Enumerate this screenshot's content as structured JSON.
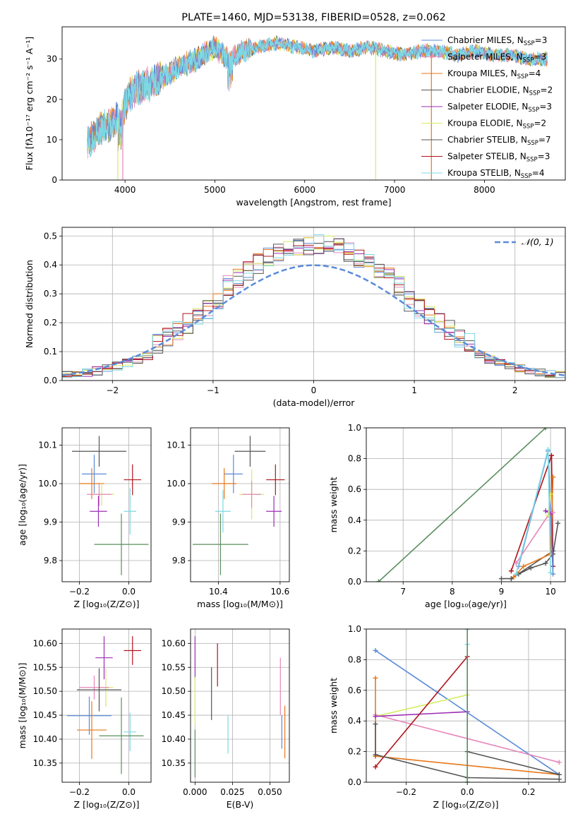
{
  "colors": {
    "Chabrier MILES": "#5b8bd9",
    "Salpeter MILES": "#e587b9",
    "Kroupa MILES": "#e8771a",
    "Chabrier ELODIE": "#555555",
    "Salpeter ELODIE": "#9b2fb5",
    "Kroupa ELODIE": "#d6ec62",
    "Chabrier STELIB": "#555555",
    "Salpeter STELIB": "#b0141c",
    "Kroupa STELIB": "#7dd8e4",
    "extra": "#5a8f5e",
    "normal": "#5b8bd9"
  },
  "chart_data": [
    {
      "id": "spectrum",
      "type": "line",
      "title": "PLATE=1460, MJD=53138, FIBERID=0528, z=0.062",
      "xlabel": "wavelength [Angstrom, rest frame]",
      "ylabel": "Flux [fλ10⁻¹⁷ erg cm⁻² s⁻¹ A⁻¹]",
      "xlim": [
        3300,
        8900
      ],
      "ylim": [
        0,
        38
      ],
      "xticks": [
        4000,
        5000,
        6000,
        7000,
        8000
      ],
      "yticks": [
        0,
        10,
        20,
        30
      ],
      "legend_position": "top-right",
      "legend": [
        "Chabrier MILES, N_SSP=3",
        "Salpeter MILES, N_SSP=3",
        "Kroupa MILES, N_SSP=4",
        "Chabrier ELODIE, N_SSP=2",
        "Salpeter ELODIE, N_SSP=3",
        "Kroupa ELODIE, N_SSP=2",
        "Chabrier STELIB, N_SSP=7",
        "Salpeter STELIB, N_SSP=3",
        "Kroupa STELIB, N_SSP=4"
      ],
      "series": [
        {
          "name": "Kroupa STELIB",
          "x": [
            3580,
            3650,
            3750,
            3850,
            3950,
            4050,
            4150,
            4300,
            4450,
            4600,
            4800,
            5000,
            5150,
            5300,
            5500,
            5700,
            5900,
            6100,
            6300,
            6500,
            6700,
            6900,
            7100,
            7300,
            7500,
            7700,
            7900,
            8100,
            8300,
            8500,
            8700
          ],
          "y": [
            9,
            11,
            13,
            14,
            16,
            21,
            23,
            24,
            26,
            28,
            30,
            33,
            30,
            32,
            33,
            34,
            33,
            32,
            33,
            32,
            33,
            32,
            31,
            32,
            32,
            31,
            32,
            31,
            31,
            30,
            30
          ]
        }
      ]
    },
    {
      "id": "residuals",
      "type": "line",
      "xlabel": "(data-model)/error",
      "ylabel": "Normed distribution",
      "xlim": [
        -2.5,
        2.5
      ],
      "ylim": [
        0,
        0.53
      ],
      "xticks": [
        -2,
        -1,
        0,
        1,
        2
      ],
      "yticks": [
        0.0,
        0.1,
        0.2,
        0.3,
        0.4,
        0.5
      ],
      "grid": true,
      "legend_position": "top-right",
      "legend": [
        "𝒩(0, 1)"
      ],
      "series": [
        {
          "name": "𝒩(0, 1)",
          "mean": 0,
          "std": 1
        }
      ]
    },
    {
      "id": "age-vs-Z",
      "type": "scatter",
      "xlabel": "Z [log₁₀(Z/Z⊙)]",
      "ylabel": "age  [log₁₀(age/yr)]",
      "xlim": [
        -0.27,
        0.09
      ],
      "ylim": [
        9.745,
        10.145
      ],
      "xticks": [
        -0.2,
        0.0
      ],
      "yticks": [
        9.8,
        9.9,
        10.0,
        10.1
      ],
      "grid": true,
      "points": [
        {
          "model": "Chabrier STELIB",
          "x": -0.12,
          "y": 10.084,
          "xerr": 0.11,
          "yerr": 0.04
        },
        {
          "model": "Chabrier MILES",
          "x": -0.14,
          "y": 10.025,
          "xerr": 0.05,
          "yerr": 0.05
        },
        {
          "model": "Kroupa MILES",
          "x": -0.15,
          "y": 10.0,
          "xerr": 0.05,
          "yerr": 0.04
        },
        {
          "model": "Salpeter STELIB",
          "x": 0.015,
          "y": 10.01,
          "xerr": 0.035,
          "yerr": 0.04
        },
        {
          "model": "Kroupa ELODIE",
          "x": -0.11,
          "y": 9.972,
          "xerr": 0.05,
          "yerr": 0.03
        },
        {
          "model": "Salpeter MILES",
          "x": -0.12,
          "y": 9.972,
          "xerr": 0.05,
          "yerr": 0.03
        },
        {
          "model": "Salpeter ELODIE",
          "x": -0.123,
          "y": 9.928,
          "xerr": 0.035,
          "yerr": 0.04
        },
        {
          "model": "Kroupa STELIB",
          "x": 0.005,
          "y": 9.928,
          "xerr": 0.025,
          "yerr": 0.06
        },
        {
          "model": "extra",
          "x": -0.03,
          "y": 9.842,
          "xerr": 0.11,
          "yerr": 0.08
        }
      ]
    },
    {
      "id": "age-vs-mass",
      "type": "scatter",
      "xlabel": "mass [log₁₀(M/M⊙)]",
      "ylim": [
        9.745,
        10.145
      ],
      "xlim": [
        10.31,
        10.63
      ],
      "xticks": [
        10.4,
        10.6
      ],
      "yticks": [
        9.8,
        9.9,
        10.0,
        10.1
      ],
      "grid": true,
      "points": [
        {
          "model": "Chabrier STELIB",
          "x": 10.503,
          "y": 10.084,
          "xerr": 0.05,
          "yerr": 0.04
        },
        {
          "model": "Chabrier MILES",
          "x": 10.449,
          "y": 10.025,
          "xerr": 0.03,
          "yerr": 0.05
        },
        {
          "model": "Kroupa MILES",
          "x": 10.419,
          "y": 10.0,
          "xerr": 0.04,
          "yerr": 0.04
        },
        {
          "model": "Salpeter STELIB",
          "x": 10.585,
          "y": 10.01,
          "xerr": 0.03,
          "yerr": 0.04
        },
        {
          "model": "Kroupa ELODIE",
          "x": 10.508,
          "y": 9.972,
          "xerr": 0.04,
          "yerr": 0.065
        },
        {
          "model": "Salpeter MILES",
          "x": 10.508,
          "y": 9.972,
          "xerr": 0.03,
          "yerr": 0.035
        },
        {
          "model": "Salpeter ELODIE",
          "x": 10.58,
          "y": 9.928,
          "xerr": 0.025,
          "yerr": 0.04
        },
        {
          "model": "Kroupa STELIB",
          "x": 10.415,
          "y": 9.928,
          "xerr": 0.025,
          "yerr": 0.055
        },
        {
          "model": "extra",
          "x": 10.407,
          "y": 9.842,
          "xerr": 0.09,
          "yerr": 0.08
        }
      ]
    },
    {
      "id": "mass-weight-vs-age",
      "type": "line",
      "xlabel": "age  [log₁₀(age/yr)]",
      "ylabel": "mass weight",
      "xlim": [
        6.25,
        10.3
      ],
      "ylim": [
        0,
        1
      ],
      "xticks": [
        7,
        8,
        9,
        10
      ],
      "yticks": [
        0.0,
        0.2,
        0.4,
        0.6,
        0.8,
        1.0
      ],
      "grid": true,
      "series": [
        {
          "name": "extra",
          "x": [
            6.5,
            9.9
          ],
          "y": [
            0.0,
            1.0
          ]
        },
        {
          "name": "Chabrier STELIB",
          "x": [
            9.0,
            9.2,
            9.35,
            9.6,
            9.9,
            10.05,
            10.15
          ],
          "y": [
            0.02,
            0.02,
            0.05,
            0.09,
            0.12,
            0.18,
            0.38
          ]
        },
        {
          "name": "Chabrier ELODIE",
          "x": [
            9.2,
            10.05
          ],
          "y": [
            0.02,
            0.2
          ]
        },
        {
          "name": "Salpeter STELIB",
          "x": [
            9.2,
            10.02,
            10.05
          ],
          "y": [
            0.07,
            0.82,
            0.1
          ]
        },
        {
          "name": "Kroupa MILES",
          "x": [
            9.25,
            9.45,
            10.0,
            10.05
          ],
          "y": [
            0.03,
            0.1,
            0.18,
            0.68
          ]
        },
        {
          "name": "Chabrier MILES",
          "x": [
            9.35,
            9.95,
            10.05
          ],
          "y": [
            0.1,
            0.85,
            0.05
          ]
        },
        {
          "name": "Salpeter MILES",
          "x": [
            9.3,
            9.95,
            10.05
          ],
          "y": [
            0.12,
            0.43,
            0.45
          ]
        },
        {
          "name": "Salpeter ELODIE",
          "x": [
            9.9,
            10.0
          ],
          "y": [
            0.46,
            0.44
          ]
        },
        {
          "name": "Kroupa ELODIE",
          "x": [
            9.95,
            10.0
          ],
          "y": [
            0.43,
            0.57
          ]
        },
        {
          "name": "Kroupa STELIB",
          "x": [
            9.3,
            9.95,
            10.0
          ],
          "y": [
            0.05,
            0.86,
            0.06
          ]
        }
      ]
    },
    {
      "id": "mass-vs-Z",
      "type": "scatter",
      "xlabel": "Z [log₁₀(Z/Z⊙)]",
      "ylabel": "mass [log₁₀(M/M⊙)]",
      "xlim": [
        -0.27,
        0.09
      ],
      "ylim": [
        10.31,
        10.63
      ],
      "xticks": [
        -0.2,
        0.0
      ],
      "yticks": [
        10.35,
        10.4,
        10.45,
        10.5,
        10.55,
        10.6
      ],
      "grid": true,
      "points": [
        {
          "model": "Salpeter STELIB",
          "x": 0.015,
          "y": 10.585,
          "xerr": 0.035,
          "yerr": 0.03
        },
        {
          "model": "Salpeter ELODIE",
          "x": -0.1,
          "y": 10.57,
          "xerr": 0.035,
          "yerr": 0.045
        },
        {
          "model": "Kroupa ELODIE",
          "x": -0.093,
          "y": 10.508,
          "xerr": 0.03,
          "yerr": 0.04
        },
        {
          "model": "Salpeter MILES",
          "x": -0.14,
          "y": 10.508,
          "xerr": 0.06,
          "yerr": 0.025
        },
        {
          "model": "Chabrier STELIB",
          "x": -0.12,
          "y": 10.503,
          "xerr": 0.09,
          "yerr": 0.045
        },
        {
          "model": "Chabrier MILES",
          "x": -0.16,
          "y": 10.449,
          "xerr": 0.09,
          "yerr": 0.04
        },
        {
          "model": "Kroupa MILES",
          "x": -0.15,
          "y": 10.419,
          "xerr": 0.06,
          "yerr": 0.06
        },
        {
          "model": "Kroupa STELIB",
          "x": 0.005,
          "y": 10.415,
          "xerr": 0.025,
          "yerr": 0.04
        },
        {
          "model": "extra",
          "x": -0.03,
          "y": 10.407,
          "xerr": 0.09,
          "yerr": 0.08
        }
      ]
    },
    {
      "id": "mass-vs-ebv",
      "type": "scatter",
      "xlabel": "E(B-V)",
      "xlim": [
        -0.003,
        0.063
      ],
      "ylim": [
        10.31,
        10.63
      ],
      "xticks": [
        0.0,
        0.025,
        0.05
      ],
      "yticks": [
        10.35,
        10.4,
        10.45,
        10.5,
        10.55,
        10.6
      ],
      "grid": true,
      "points": [
        {
          "model": "Salpeter ELODIE",
          "x": 0.0,
          "y": 10.57,
          "yerr": 0.045
        },
        {
          "model": "Kroupa ELODIE",
          "x": 0.0,
          "y": 10.48,
          "yerr": 0.05
        },
        {
          "model": "extra",
          "x": 0.0,
          "y": 10.37,
          "yerr": 0.05
        },
        {
          "model": "Salpeter STELIB",
          "x": 0.015,
          "y": 10.555,
          "yerr": 0.045
        },
        {
          "model": "Chabrier STELIB",
          "x": 0.011,
          "y": 10.495,
          "yerr": 0.055
        },
        {
          "model": "Kroupa STELIB",
          "x": 0.022,
          "y": 10.41,
          "yerr": 0.04
        },
        {
          "model": "Salpeter MILES",
          "x": 0.057,
          "y": 10.51,
          "yerr": 0.06
        },
        {
          "model": "Chabrier MILES",
          "x": 0.058,
          "y": 10.415,
          "yerr": 0.035
        },
        {
          "model": "Kroupa MILES",
          "x": 0.06,
          "y": 10.415,
          "yerr": 0.055
        }
      ]
    },
    {
      "id": "mass-weight-vs-Z",
      "type": "line",
      "xlabel": "Z [log₁₀(Z/Z⊙)]",
      "ylabel": "mass weight",
      "xlim": [
        -0.33,
        0.32
      ],
      "ylim": [
        0,
        1
      ],
      "xticks": [
        -0.2,
        0.0,
        0.2
      ],
      "yticks": [
        0.0,
        0.2,
        0.4,
        0.6,
        0.8,
        1.0
      ],
      "grid": true,
      "series": [
        {
          "name": "Chabrier MILES",
          "x": [
            -0.3,
            0.3
          ],
          "y": [
            0.86,
            0.05
          ]
        },
        {
          "name": "Salpeter MILES",
          "x": [
            -0.3,
            0.3
          ],
          "y": [
            0.44,
            0.13
          ]
        },
        {
          "name": "Kroupa MILES",
          "x": [
            -0.3,
            0.3
          ],
          "y": [
            0.17,
            0.05
          ]
        },
        {
          "name": "Kroupa MILES",
          "x": [
            -0.3,
            -0.3
          ],
          "y": [
            0.17,
            0.68
          ]
        },
        {
          "name": "Kroupa ELODIE",
          "x": [
            -0.3,
            0.0
          ],
          "y": [
            0.43,
            0.57
          ]
        },
        {
          "name": "Salpeter ELODIE",
          "x": [
            -0.3,
            0.0
          ],
          "y": [
            0.43,
            0.46
          ]
        },
        {
          "name": "Salpeter STELIB",
          "x": [
            -0.3,
            0.0
          ],
          "y": [
            0.1,
            0.82
          ]
        },
        {
          "name": "Chabrier STELIB",
          "x": [
            -0.3,
            -0.3,
            0.0,
            0.3
          ],
          "y": [
            0.38,
            0.18,
            0.03,
            0.02
          ]
        },
        {
          "name": "Chabrier ELODIE",
          "x": [
            0.0,
            0.3
          ],
          "y": [
            0.2,
            0.05
          ]
        },
        {
          "name": "Kroupa STELIB",
          "x": [
            0.0,
            0.0
          ],
          "y": [
            0.0,
            0.9
          ]
        },
        {
          "name": "extra",
          "x": [
            0.0,
            0.0
          ],
          "y": [
            0.0,
            1.0
          ]
        }
      ]
    }
  ]
}
